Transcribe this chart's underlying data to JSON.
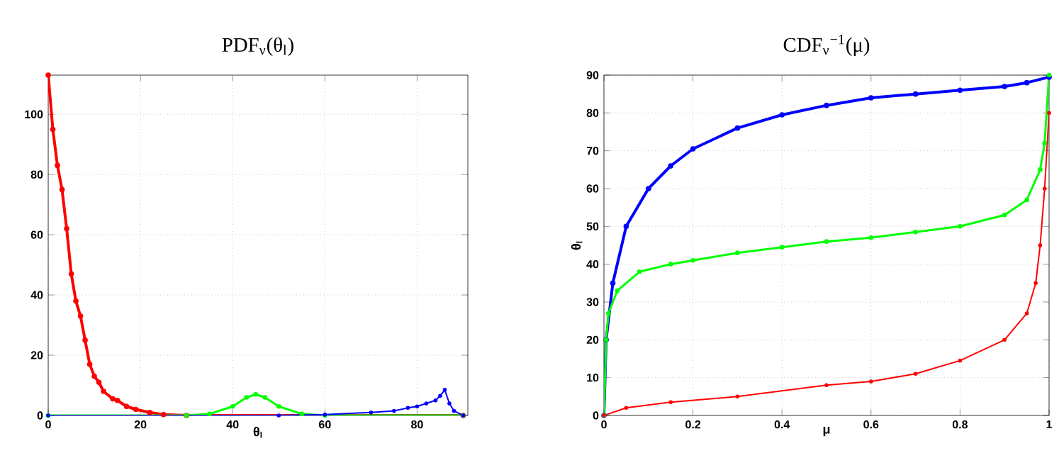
{
  "chart_data": [
    {
      "type": "line",
      "title": "PDF$_{ν}$(θ$_{l}$)",
      "xlabel": "θ$_{l}$",
      "xlim": [
        0,
        91
      ],
      "ylim": [
        0,
        113
      ],
      "xticks": [
        0,
        20,
        40,
        60,
        80
      ],
      "yticks": [
        0,
        20,
        40,
        60,
        80,
        100
      ],
      "grid": true,
      "marker": "circle",
      "line_style": "solid",
      "series": [
        {
          "color": "#ff0000",
          "x": [
            0,
            1,
            2,
            3,
            4,
            5,
            6,
            7,
            8,
            9,
            10,
            11,
            12,
            14,
            15,
            17,
            19,
            22,
            25,
            30,
            90
          ],
          "values": [
            113,
            95,
            83,
            75,
            62,
            47,
            38,
            33,
            25,
            17,
            13,
            11,
            8,
            5.5,
            5,
            3,
            2,
            1,
            0.3,
            0,
            0
          ]
        },
        {
          "color": "#00ff00",
          "x": [
            0,
            30,
            35,
            40,
            43,
            45,
            47,
            50,
            55,
            60,
            90
          ],
          "values": [
            0,
            0,
            0.5,
            3,
            6,
            7,
            6,
            3,
            0.5,
            0,
            0
          ]
        },
        {
          "color": "#0000ff",
          "x": [
            0,
            50,
            60,
            70,
            75,
            78,
            80,
            82,
            84,
            85,
            86,
            87,
            88,
            90
          ],
          "values": [
            0,
            0,
            0.3,
            1,
            1.5,
            2.5,
            3,
            4,
            5,
            6.5,
            8.5,
            4,
            1.5,
            0
          ]
        }
      ]
    },
    {
      "type": "line",
      "title": "CDF$_{ν}$$^{−1}$(μ)",
      "xlabel": "μ",
      "ylabel": "θ$_{l}$",
      "xlim": [
        0,
        1
      ],
      "ylim": [
        0,
        90
      ],
      "xticks": [
        0,
        0.2,
        0.4,
        0.6,
        0.8,
        1
      ],
      "yticks": [
        0,
        10,
        20,
        30,
        40,
        50,
        60,
        70,
        80,
        90
      ],
      "grid": true,
      "marker": "circle",
      "line_style": "solid",
      "series": [
        {
          "color": "#0000ff",
          "x": [
            0,
            0.005,
            0.02,
            0.05,
            0.1,
            0.15,
            0.2,
            0.3,
            0.4,
            0.5,
            0.6,
            0.7,
            0.8,
            0.9,
            0.95,
            1
          ],
          "values": [
            0,
            20,
            35,
            50,
            60,
            66,
            70.5,
            76,
            79.5,
            82,
            84,
            85,
            86,
            87,
            88,
            89.5
          ]
        },
        {
          "color": "#00ff00",
          "x": [
            0,
            0.005,
            0.01,
            0.03,
            0.08,
            0.15,
            0.2,
            0.3,
            0.4,
            0.5,
            0.6,
            0.7,
            0.8,
            0.9,
            0.95,
            0.98,
            0.99,
            1
          ],
          "values": [
            0,
            20,
            27,
            33,
            38,
            40,
            41,
            43,
            44.5,
            46,
            47,
            48.5,
            50,
            53,
            57,
            65,
            72,
            90
          ]
        },
        {
          "color": "#ff0000",
          "x": [
            0,
            0.05,
            0.15,
            0.3,
            0.5,
            0.6,
            0.7,
            0.8,
            0.9,
            0.95,
            0.97,
            0.98,
            0.99,
            1
          ],
          "values": [
            0,
            2,
            3.5,
            5,
            8,
            9,
            11,
            14.5,
            20,
            27,
            35,
            45,
            60,
            80
          ]
        }
      ]
    }
  ]
}
